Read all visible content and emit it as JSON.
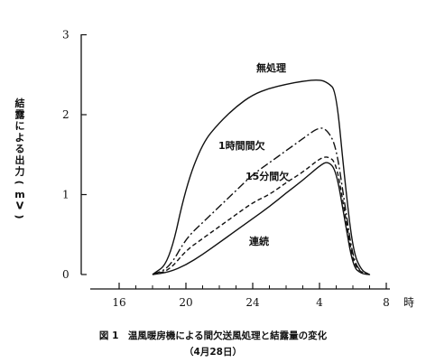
{
  "chart_data": {
    "type": "line",
    "ylabel": "結露による出力 (mV)",
    "x_ticks": [
      "16",
      "20",
      "24",
      "4",
      "8"
    ],
    "x_unit": "時",
    "y_ticks": [
      "0",
      "1",
      "2",
      "3"
    ],
    "ylim": [
      0,
      3
    ],
    "grid": false,
    "x_hours": [
      18,
      19,
      20,
      21,
      22,
      23,
      24,
      25,
      26,
      27,
      28,
      28.5,
      29,
      29.5,
      30,
      30.5,
      31
    ],
    "series": [
      {
        "name": "無処理",
        "style": "solid",
        "values": [
          0.0,
          0.15,
          1.1,
          1.65,
          1.9,
          2.1,
          2.25,
          2.33,
          2.38,
          2.42,
          2.44,
          2.4,
          2.3,
          1.2,
          0.3,
          0.05,
          0.0
        ]
      },
      {
        "name": "1時間間欠",
        "style": "dashdot",
        "values": [
          0.0,
          0.08,
          0.45,
          0.65,
          0.85,
          1.05,
          1.25,
          1.4,
          1.55,
          1.7,
          1.85,
          1.8,
          1.6,
          0.9,
          0.2,
          0.02,
          0.0
        ]
      },
      {
        "name": "15分間欠",
        "style": "dashed",
        "values": [
          0.0,
          0.05,
          0.3,
          0.45,
          0.6,
          0.75,
          0.9,
          1.0,
          1.15,
          1.28,
          1.45,
          1.48,
          1.4,
          0.8,
          0.15,
          0.02,
          0.0
        ]
      },
      {
        "name": "連続",
        "style": "solid",
        "values": [
          0.0,
          0.03,
          0.12,
          0.25,
          0.4,
          0.55,
          0.7,
          0.85,
          1.02,
          1.18,
          1.36,
          1.42,
          1.3,
          0.7,
          0.1,
          0.01,
          0.0
        ]
      }
    ]
  },
  "caption": {
    "line1": "図 1　温風暖房機による間欠送風処理と結露量の変化",
    "line2": "（4月28日）"
  }
}
